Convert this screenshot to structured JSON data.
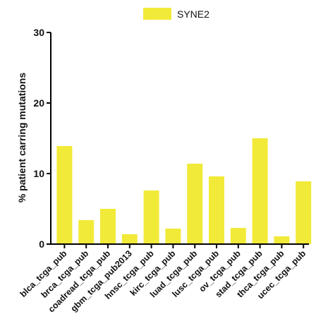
{
  "chart_data": {
    "type": "bar",
    "title": "",
    "xlabel": "",
    "ylabel": "% patient carring mutations",
    "ylim": [
      0,
      30
    ],
    "yticks": [
      "0",
      "10",
      "20",
      "30"
    ],
    "legend_position": "top",
    "grid": false,
    "categories": [
      "blca_tcga_pub",
      "brca_tcga_pub",
      "coadread_tcga_pub",
      "gbm_tcga_pub2013",
      "hnsc_tcga_pub",
      "kirc_tcga_pub",
      "luad_tcga_pub",
      "lusc_tcga_pub",
      "ov_tcga_pub",
      "stad_tcga_pub",
      "thca_tcga_pub",
      "ucec_tcga_pub"
    ],
    "series": [
      {
        "name": "SYNE2",
        "color": "#f2ea38",
        "values": [
          13.9,
          3.4,
          5.0,
          1.4,
          7.6,
          2.2,
          11.4,
          9.6,
          2.3,
          15.0,
          1.1,
          8.9
        ]
      }
    ]
  }
}
